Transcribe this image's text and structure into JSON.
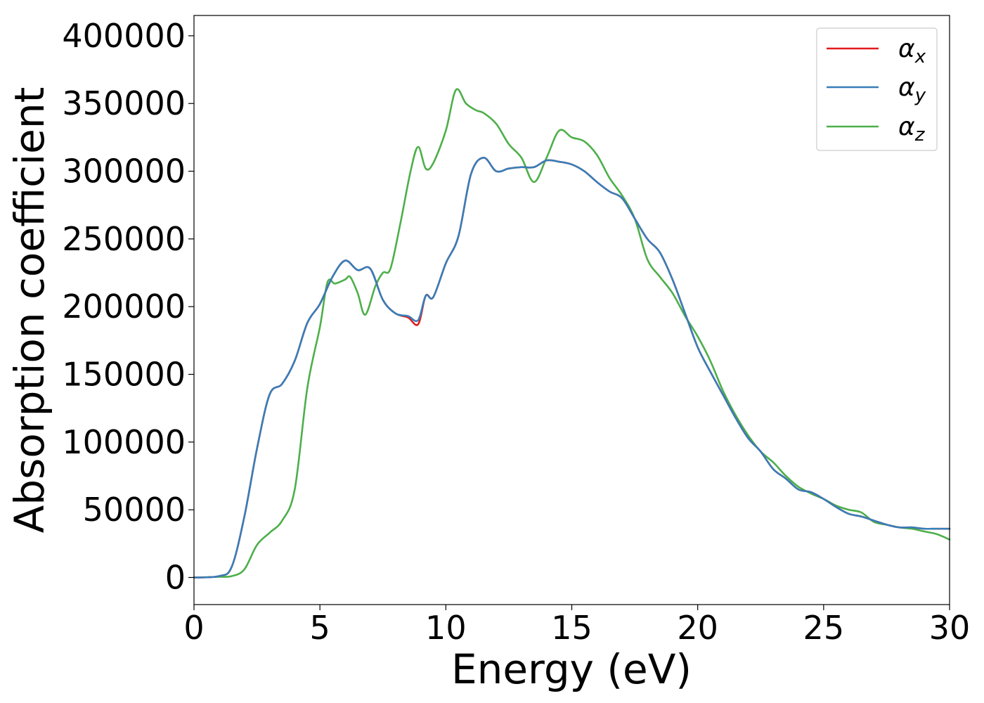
{
  "chart_data": {
    "type": "line",
    "title": "",
    "xlabel": "Energy (eV)",
    "ylabel": "Absorption coefficient",
    "xlim": [
      0,
      30
    ],
    "ylim": [
      -20000,
      415000
    ],
    "xticks": [
      0,
      5,
      10,
      15,
      20,
      25,
      30
    ],
    "yticks": [
      0,
      50000,
      100000,
      150000,
      200000,
      250000,
      300000,
      350000,
      400000
    ],
    "grid": false,
    "legend": "top-right",
    "series": [
      {
        "name": "α",
        "subscript": "x",
        "color": "#e41a1c",
        "x": [
          0,
          1,
          1.5,
          2,
          2.5,
          3,
          3.5,
          4,
          4.5,
          5,
          5.5,
          6,
          6.5,
          7,
          7.5,
          8,
          8.5,
          8.9,
          9.2,
          9.5,
          10,
          10.5,
          11,
          11.5,
          12,
          12.5,
          13,
          13.5,
          14,
          14.5,
          15,
          15.5,
          16,
          16.5,
          17,
          17.5,
          18,
          18.5,
          19,
          19.5,
          20,
          20.5,
          21,
          21.5,
          22,
          22.5,
          23,
          23.5,
          24,
          24.5,
          25,
          25.5,
          26,
          26.5,
          27,
          27.5,
          28,
          28.5,
          29,
          29.5,
          30
        ],
        "values": [
          0,
          1000,
          8000,
          45000,
          95000,
          135000,
          143000,
          160000,
          188000,
          202000,
          222000,
          234000,
          227000,
          228000,
          205000,
          195000,
          192000,
          187000,
          208000,
          207000,
          232000,
          252000,
          298000,
          310000,
          300000,
          302000,
          303000,
          303000,
          308000,
          307000,
          305000,
          300000,
          292000,
          285000,
          280000,
          265000,
          250000,
          240000,
          220000,
          195000,
          170000,
          152000,
          135000,
          118000,
          103000,
          93000,
          80000,
          73000,
          65000,
          63000,
          58000,
          52000,
          47000,
          45000,
          42000,
          39000,
          37000,
          37000,
          36000,
          36000,
          36000
        ]
      },
      {
        "name": "α",
        "subscript": "y",
        "color": "#377eb8",
        "x": [
          0,
          1,
          1.5,
          2,
          2.5,
          3,
          3.5,
          4,
          4.5,
          5,
          5.5,
          6,
          6.5,
          7,
          7.5,
          8,
          8.5,
          8.9,
          9.2,
          9.5,
          10,
          10.5,
          11,
          11.5,
          12,
          12.5,
          13,
          13.5,
          14,
          14.5,
          15,
          15.5,
          16,
          16.5,
          17,
          17.5,
          18,
          18.5,
          19,
          19.5,
          20,
          20.5,
          21,
          21.5,
          22,
          22.5,
          23,
          23.5,
          24,
          24.5,
          25,
          25.5,
          26,
          26.5,
          27,
          27.5,
          28,
          28.5,
          29,
          29.5,
          30
        ],
        "values": [
          0,
          1000,
          8000,
          45000,
          95000,
          135000,
          143000,
          160000,
          188000,
          202000,
          222000,
          234000,
          227000,
          228000,
          205000,
          195000,
          193000,
          190000,
          208000,
          207000,
          232000,
          252000,
          298000,
          310000,
          300000,
          302000,
          303000,
          303000,
          308000,
          307000,
          305000,
          300000,
          292000,
          285000,
          280000,
          265000,
          250000,
          240000,
          220000,
          195000,
          170000,
          152000,
          135000,
          118000,
          103000,
          93000,
          80000,
          73000,
          65000,
          63000,
          58000,
          52000,
          47000,
          45000,
          42000,
          39000,
          37000,
          37000,
          36000,
          36000,
          36000
        ]
      },
      {
        "name": "α",
        "subscript": "z",
        "color": "#4daf4a",
        "x": [
          0,
          1,
          1.5,
          2,
          2.5,
          3,
          3.5,
          4,
          4.5,
          5,
          5.3,
          5.6,
          6,
          6.2,
          6.5,
          6.8,
          7.2,
          7.5,
          7.8,
          8.2,
          8.6,
          8.9,
          9.2,
          9.5,
          10,
          10.4,
          10.8,
          11.2,
          11.5,
          12,
          12.5,
          13,
          13.5,
          14,
          14.5,
          15,
          15.5,
          16,
          16.5,
          17,
          17.5,
          18,
          18.5,
          19,
          19.5,
          20,
          20.5,
          21,
          21.5,
          22,
          22.5,
          23,
          23.5,
          24,
          24.5,
          25,
          25.5,
          26,
          26.5,
          27,
          27.5,
          28,
          28.5,
          29,
          29.5,
          30
        ],
        "values": [
          0,
          500,
          1000,
          6000,
          24000,
          33000,
          42000,
          65000,
          140000,
          185000,
          218000,
          217000,
          220000,
          222000,
          210000,
          194000,
          215000,
          225000,
          228000,
          262000,
          300000,
          318000,
          302000,
          306000,
          330000,
          360000,
          350000,
          345000,
          343000,
          335000,
          320000,
          310000,
          292000,
          310000,
          330000,
          325000,
          322000,
          312000,
          295000,
          282000,
          265000,
          235000,
          222000,
          210000,
          193000,
          178000,
          160000,
          138000,
          120000,
          105000,
          93000,
          85000,
          75000,
          67000,
          62000,
          58000,
          53000,
          50000,
          48000,
          41000,
          39000,
          37000,
          36000,
          34000,
          32000,
          28000
        ]
      }
    ]
  }
}
